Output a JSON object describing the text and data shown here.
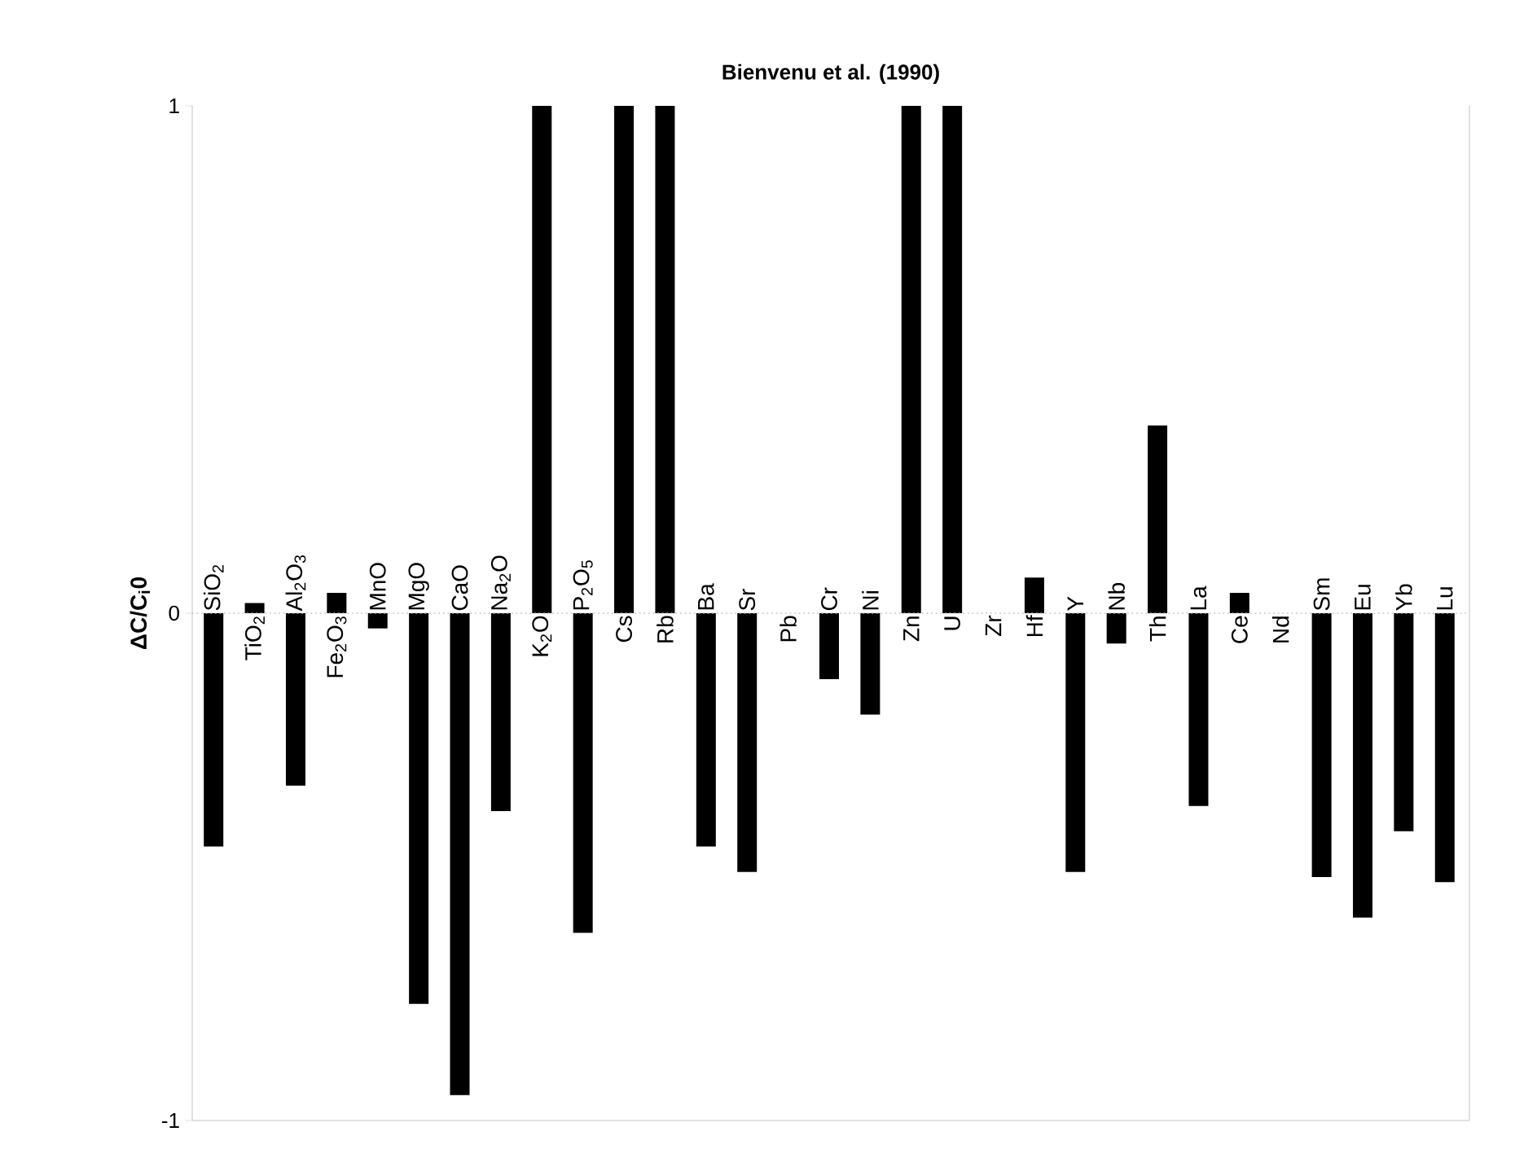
{
  "chart_data": {
    "type": "bar",
    "title": "Bienvenu et al. (1990)",
    "ylabel": "ΔC/C$_{i}$0",
    "categories": [
      "SiO$_{2}$",
      "TiO$_{2}$",
      "Al$_{2}$O$_{3}$",
      "Fe$_{2}$O$_{3}$",
      "MnO",
      "MgO",
      "CaO",
      "Na$_{2}$O",
      "K$_{2}$O",
      "P$_{2}$O$_{5}$",
      "Cs",
      "Rb",
      "Ba",
      "Sr",
      "Pb",
      "Cr",
      "Ni",
      "Zn",
      "U",
      "Zr",
      "Hf",
      "Y",
      "Nb",
      "Th",
      "La",
      "Ce",
      "Nd",
      "Sm",
      "Eu",
      "Yb",
      "Lu"
    ],
    "values": [
      -0.46,
      0.02,
      -0.34,
      0.04,
      -0.03,
      -0.77,
      -0.95,
      -0.39,
      1,
      -0.63,
      1,
      1,
      -0.46,
      -0.51,
      0,
      -0.13,
      -0.2,
      1,
      1,
      0,
      0.07,
      -0.51,
      -0.06,
      0.37,
      -0.38,
      0.04,
      0,
      -0.52,
      -0.6,
      -0.43,
      -0.53
    ],
    "color": "#000000",
    "ylim": [
      -1,
      1
    ],
    "yticks": [
      -1,
      0,
      1
    ]
  }
}
